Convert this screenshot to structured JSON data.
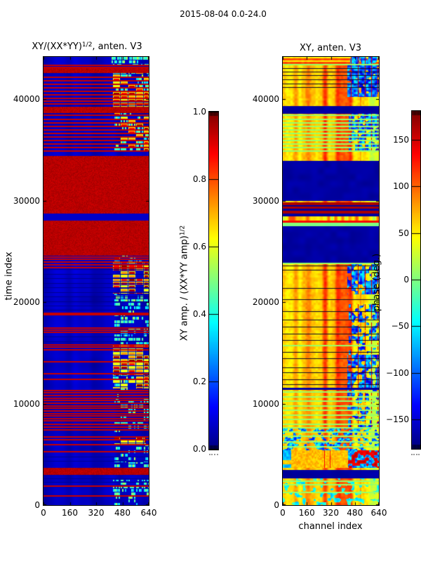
{
  "figure": {
    "title": "2015-08-04 0.0-24.0"
  },
  "colors": {
    "figure_bg": "#ffffff",
    "axis": "#000000",
    "flag_red": "#9e0000",
    "deep_blue_bg": "#0000a8",
    "navy_block": "#000090",
    "orange_base": "#f25d00",
    "green_line": "#b2ff4c"
  },
  "chart_data": {
    "type": "heatmap",
    "title": "2015-08-04 0.0-24.0",
    "colormap": "jet",
    "x_axis": {
      "label": "channel index",
      "range": [
        0,
        640
      ],
      "ticks": [
        0,
        160,
        320,
        480,
        640
      ],
      "tick_labels": [
        "0",
        "160",
        "320",
        "480",
        "640"
      ]
    },
    "y_axis": {
      "label": "time index",
      "range": [
        0,
        44160
      ],
      "ticks": [
        0,
        10000,
        20000,
        30000,
        40000
      ],
      "tick_labels": [
        "0",
        "10000",
        "20000",
        "30000",
        "40000"
      ]
    },
    "panels": [
      {
        "id": "amplitude",
        "title_base": "XY/(XX*YY)",
        "title_sup": "1/2",
        "title_rest": ", anten. V3",
        "colorbar": {
          "label_base": "XY amp. / (XX*YY amp)",
          "label_sup": "1/2",
          "range": [
            0.0,
            1.0
          ],
          "ticks": [
            0.0,
            0.2,
            0.4,
            0.6,
            0.8,
            1.0
          ],
          "tick_labels": [
            "0.0",
            "0.2",
            "0.4",
            "0.6",
            "0.8",
            "1.0"
          ]
        },
        "red_bands": [
          [
            3050,
            3670
          ],
          [
            24640,
            28100
          ],
          [
            28730,
            34400
          ],
          [
            38690,
            39240
          ],
          [
            42630,
            43050
          ]
        ],
        "blue_gap_band": [
          28100,
          28730
        ],
        "red_lines": [
          43420,
          43180,
          42250,
          41900,
          41550,
          41200,
          40850,
          40500,
          40150,
          39900,
          39600,
          38450,
          38100,
          37750,
          37400,
          37050,
          36700,
          36350,
          36000,
          35650,
          35300,
          34950,
          24500,
          24290,
          24010,
          23740,
          23460,
          18950,
          18800,
          17500,
          17300,
          17100,
          15850,
          15650,
          15350,
          14200,
          13000,
          12450,
          11350,
          11150,
          10850,
          10600,
          10350,
          10100,
          9850,
          9600,
          9350,
          9100,
          8850,
          8600,
          8350,
          8050,
          7750,
          7450,
          6800,
          6530,
          5990,
          5330,
          1940,
          970
        ],
        "dark_lines": [
          23250,
          22800,
          22350,
          21900,
          21450,
          21000,
          20550,
          20100,
          19650,
          19250,
          16600,
          16100,
          4770,
          4360,
          2630,
          2290
        ],
        "block_bands": [
          {
            "t": [
              43350,
              44160
            ],
            "heat": "cool",
            "density": 0.85,
            "ch": [
              352,
              640
            ]
          },
          {
            "t": [
              40760,
              42560
            ],
            "heat": "mixed",
            "density": 0.8,
            "ch": [
              420,
              640
            ]
          },
          {
            "t": [
              39930,
              40690
            ],
            "heat": "hot",
            "density": 0.9,
            "ch": [
              420,
              640
            ]
          },
          {
            "t": [
              39310,
              39860
            ],
            "heat": "hot",
            "density": 0.95,
            "ch": [
              420,
              640
            ]
          },
          {
            "t": [
              34880,
              38620
            ],
            "heat": "mixed",
            "density": 0.6,
            "ch": [
              430,
              640
            ]
          },
          {
            "t": [
              23950,
              24600
            ],
            "heat": "mixed",
            "density": 0.55,
            "ch": [
              430,
              640
            ]
          },
          {
            "t": [
              20800,
              23900
            ],
            "heat": "hot",
            "density": 0.9,
            "ch": [
              420,
              640
            ]
          },
          {
            "t": [
              19300,
              20800
            ],
            "heat": "cool",
            "density": 0.55,
            "ch": [
              430,
              640
            ]
          },
          {
            "t": [
              17950,
              19300
            ],
            "heat": "cool",
            "density": 0.6,
            "ch": [
              430,
              640
            ]
          },
          {
            "t": [
              15850,
              17950
            ],
            "heat": "cool",
            "density": 0.45,
            "ch": [
              430,
              640
            ]
          },
          {
            "t": [
              14330,
              15850
            ],
            "heat": "hot",
            "density": 0.95,
            "ch": [
              420,
              640
            ]
          },
          {
            "t": [
              12800,
              14330
            ],
            "heat": "hot",
            "density": 0.95,
            "ch": [
              420,
              640
            ]
          },
          {
            "t": [
              11500,
              12800
            ],
            "heat": "mixed",
            "density": 0.8,
            "ch": [
              420,
              640
            ]
          },
          {
            "t": [
              10600,
              11500
            ],
            "heat": "cool",
            "density": 0.3,
            "ch": [
              430,
              640
            ]
          },
          {
            "t": [
              7800,
              10600
            ],
            "heat": "cool",
            "density": 0.6,
            "ch": [
              430,
              640
            ]
          },
          {
            "t": [
              6850,
              7800
            ],
            "heat": "cool",
            "density": 0.35,
            "ch": [
              430,
              640
            ]
          },
          {
            "t": [
              5950,
              6850
            ],
            "heat": "hot",
            "density": 0.9,
            "ch": [
              430,
              620
            ]
          },
          {
            "t": [
              4200,
              5950
            ],
            "heat": "cool",
            "density": 0.5,
            "ch": [
              430,
              640
            ]
          },
          {
            "t": [
              3670,
              4200
            ],
            "heat": "cool",
            "density": 0.6,
            "ch": [
              430,
              640
            ]
          },
          {
            "t": [
              900,
              2500
            ],
            "heat": "cool",
            "density": 0.8,
            "ch": [
              420,
              640
            ]
          },
          {
            "t": [
              0,
              900
            ],
            "heat": "cool",
            "density": 0.55,
            "ch": [
              430,
              580
            ]
          }
        ]
      },
      {
        "id": "phase",
        "title": "XY, anten. V3",
        "colorbar": {
          "label": "phase (deg.)",
          "range": [
            -181,
            181
          ],
          "ticks": [
            150,
            100,
            50,
            0,
            -50,
            -100,
            -150
          ],
          "tick_labels": [
            "150",
            "100",
            "50",
            "0",
            "−50",
            "−100",
            "−150"
          ]
        },
        "navy_bands": [
          [
            2700,
            3460
          ],
          [
            23950,
            27550
          ],
          [
            30040,
            33920
          ],
          [
            38620,
            39310
          ],
          [
            11400,
            11560
          ]
        ],
        "striped_band_rows": [
          {
            "t": [
              29210,
              29830
            ],
            "v": 0.96
          },
          {
            "t": [
              29520,
              29580
            ],
            "v": 0.03
          },
          {
            "t": [
              29020,
              29210
            ],
            "v": 0.03
          },
          {
            "t": [
              28720,
              29020
            ],
            "v": 0.96
          },
          {
            "t": [
              28440,
              28720
            ],
            "v": 0.03
          },
          {
            "t": [
              28030,
              28440
            ],
            "v": 0.62,
            "noisy": true
          },
          {
            "t": [
              27830,
              28030
            ],
            "v": 0.88
          },
          {
            "t": [
              27550,
              27830
            ],
            "v": 0.5
          }
        ],
        "green_lines": [
          43500,
          38450,
          38100,
          37750,
          37400,
          37050,
          36700,
          36350,
          36000,
          35650,
          35300,
          34980,
          23850,
          15750,
          11200,
          10750,
          10300,
          9850,
          9400,
          8950,
          8500,
          8050,
          7650,
          7250,
          6850,
          6300,
          5800,
          2450,
          2100,
          1300
        ],
        "dark_lines": [
          43050,
          42700,
          42350,
          41950,
          41550,
          41150,
          23600,
          23200,
          21400,
          20300,
          19100,
          18300,
          17600,
          16900,
          16300,
          15100,
          14500,
          13600,
          13100,
          12400,
          11900
        ],
        "blue_patch_bands": [
          {
            "t": [
              43400,
              44160
            ],
            "strength": 0.75,
            "ch": [
              450,
              625
            ]
          },
          {
            "t": [
              40300,
              43400
            ],
            "strength": 0.8,
            "ch": [
              430,
              640
            ]
          },
          {
            "t": [
              35000,
              38600
            ],
            "strength": 0.6,
            "ch": [
              440,
              640
            ]
          },
          {
            "t": [
              20800,
              24000
            ],
            "strength": 0.55,
            "ch": [
              430,
              640
            ]
          },
          {
            "t": [
              16000,
              19800
            ],
            "strength": 0.5,
            "ch": [
              440,
              640
            ]
          },
          {
            "t": [
              14800,
              16000
            ],
            "strength": 0.3,
            "ch": [
              440,
              640
            ]
          },
          {
            "t": [
              11600,
              14800
            ],
            "strength": 0.55,
            "ch": [
              430,
              640
            ]
          },
          {
            "t": [
              7700,
              11400
            ],
            "strength": 0.4,
            "ch": [
              430,
              640
            ]
          }
        ],
        "noise_bands": [
          {
            "t": [
              6300,
              7700
            ],
            "style": "speckle"
          },
          {
            "t": [
              5400,
              6300
            ],
            "style": "speckle-blue-left"
          },
          {
            "t": [
              3740,
              5400
            ],
            "style": "salmon"
          },
          {
            "t": [
              1300,
              2700
            ],
            "style": "speckle-light"
          },
          {
            "t": [
              0,
              1300
            ],
            "style": "speckle-light"
          }
        ],
        "top_band": [
          43400,
          44160
        ]
      }
    ]
  }
}
